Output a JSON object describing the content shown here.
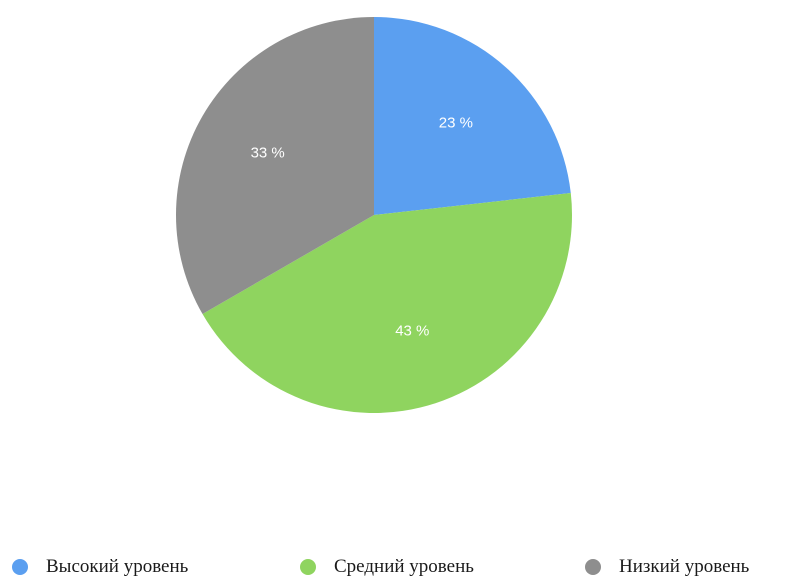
{
  "chart_data": {
    "type": "pie",
    "title": "",
    "categories": [
      "Высокий уровень",
      "Средний уровень",
      "Низкий уровень"
    ],
    "values": [
      23,
      43,
      33
    ],
    "data_labels": [
      "23 %",
      "43 %",
      "33 %"
    ],
    "colors": [
      "#5b9ff0",
      "#8fd45f",
      "#8e8e8e"
    ],
    "start_angle": "12 o'clock",
    "direction": "clockwise",
    "legend_position": "bottom"
  }
}
